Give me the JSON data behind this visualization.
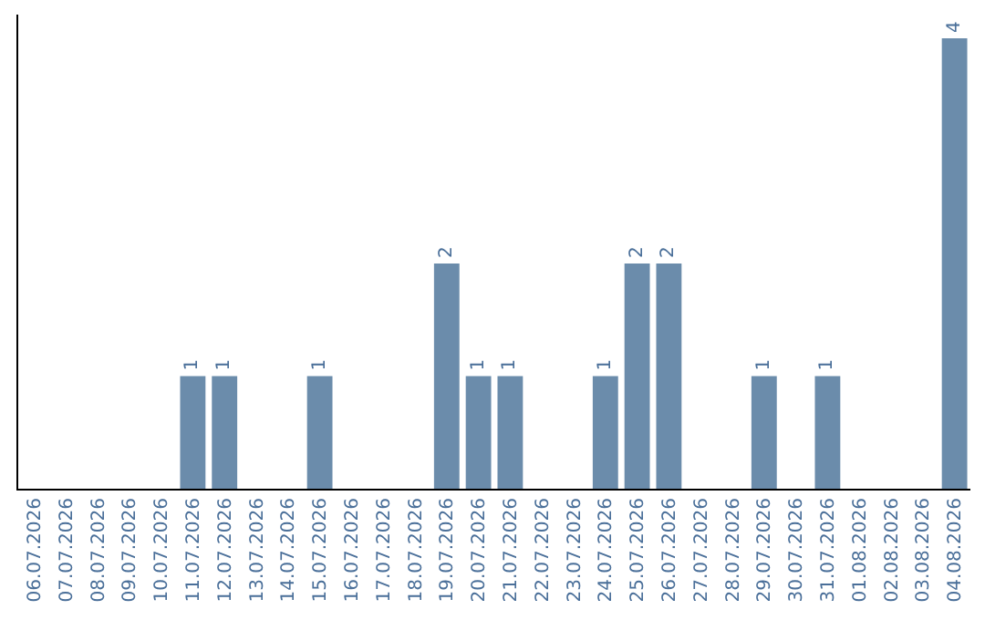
{
  "chart_data": {
    "type": "bar",
    "categories": [
      "06.07.2026",
      "07.07.2026",
      "08.07.2026",
      "09.07.2026",
      "10.07.2026",
      "11.07.2026",
      "12.07.2026",
      "13.07.2026",
      "14.07.2026",
      "15.07.2026",
      "16.07.2026",
      "17.07.2026",
      "18.07.2026",
      "19.07.2026",
      "20.07.2026",
      "21.07.2026",
      "22.07.2026",
      "23.07.2026",
      "24.07.2026",
      "25.07.2026",
      "26.07.2026",
      "27.07.2026",
      "28.07.2026",
      "29.07.2026",
      "30.07.2026",
      "31.07.2026",
      "01.08.2026",
      "02.08.2026",
      "03.08.2026",
      "04.08.2026"
    ],
    "values": [
      0,
      0,
      0,
      0,
      0,
      1,
      1,
      0,
      0,
      1,
      0,
      0,
      0,
      2,
      1,
      1,
      0,
      0,
      1,
      2,
      2,
      0,
      0,
      1,
      0,
      1,
      0,
      0,
      0,
      4
    ],
    "value_labels": [
      null,
      null,
      null,
      null,
      null,
      "1",
      "1",
      null,
      null,
      "1",
      null,
      null,
      null,
      "2",
      "1",
      "1",
      null,
      null,
      "1",
      "2",
      "2",
      null,
      null,
      "1",
      null,
      "1",
      null,
      null,
      null,
      "4"
    ],
    "color": "#6b8cab",
    "tick_labels": "x"
  }
}
